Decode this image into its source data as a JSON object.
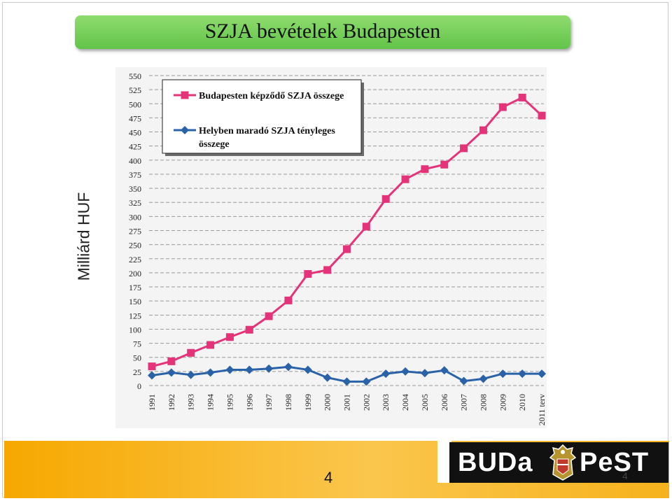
{
  "title": "SZJA bevételek Budapesten",
  "chart_data": {
    "type": "line",
    "ylabel": "Milliárd HUF",
    "xlabel": "",
    "ylim": [
      0,
      550
    ],
    "yticks": [
      "0",
      "25",
      "50",
      "75",
      "100",
      "125",
      "150",
      "175",
      "200",
      "225",
      "250",
      "275",
      "300",
      "325",
      "350",
      "375",
      "400",
      "425",
      "450",
      "475",
      "500",
      "525",
      "550"
    ],
    "categories": [
      "1991",
      "1992",
      "1993",
      "1994",
      "1995",
      "1996",
      "1997",
      "1998",
      "1999",
      "2000",
      "2001",
      "2002",
      "2003",
      "2004",
      "2005",
      "2006",
      "2007",
      "2008",
      "2009",
      "2010",
      "2011 terv"
    ],
    "grid": true,
    "legend_position": "top-left",
    "series": [
      {
        "name": "Budapesten képződő SZJA összege",
        "color": "#e5337a",
        "marker": "square",
        "values": [
          34,
          43,
          58,
          72,
          86,
          99,
          123,
          151,
          198,
          205,
          242,
          282,
          331,
          366,
          384,
          392,
          421,
          453,
          494,
          511,
          479
        ]
      },
      {
        "name": "Helyben maradó SZJA tényleges összege",
        "color": "#2a62a8",
        "marker": "diamond",
        "values": [
          18,
          23,
          19,
          23,
          28,
          28,
          30,
          33,
          28,
          14,
          7,
          7,
          21,
          25,
          22,
          27,
          8,
          12,
          21,
          21,
          21
        ]
      }
    ]
  },
  "footer": {
    "page_number": "4",
    "page_number_small": "4",
    "logo_left": "BUDa",
    "logo_right": "PeST"
  }
}
